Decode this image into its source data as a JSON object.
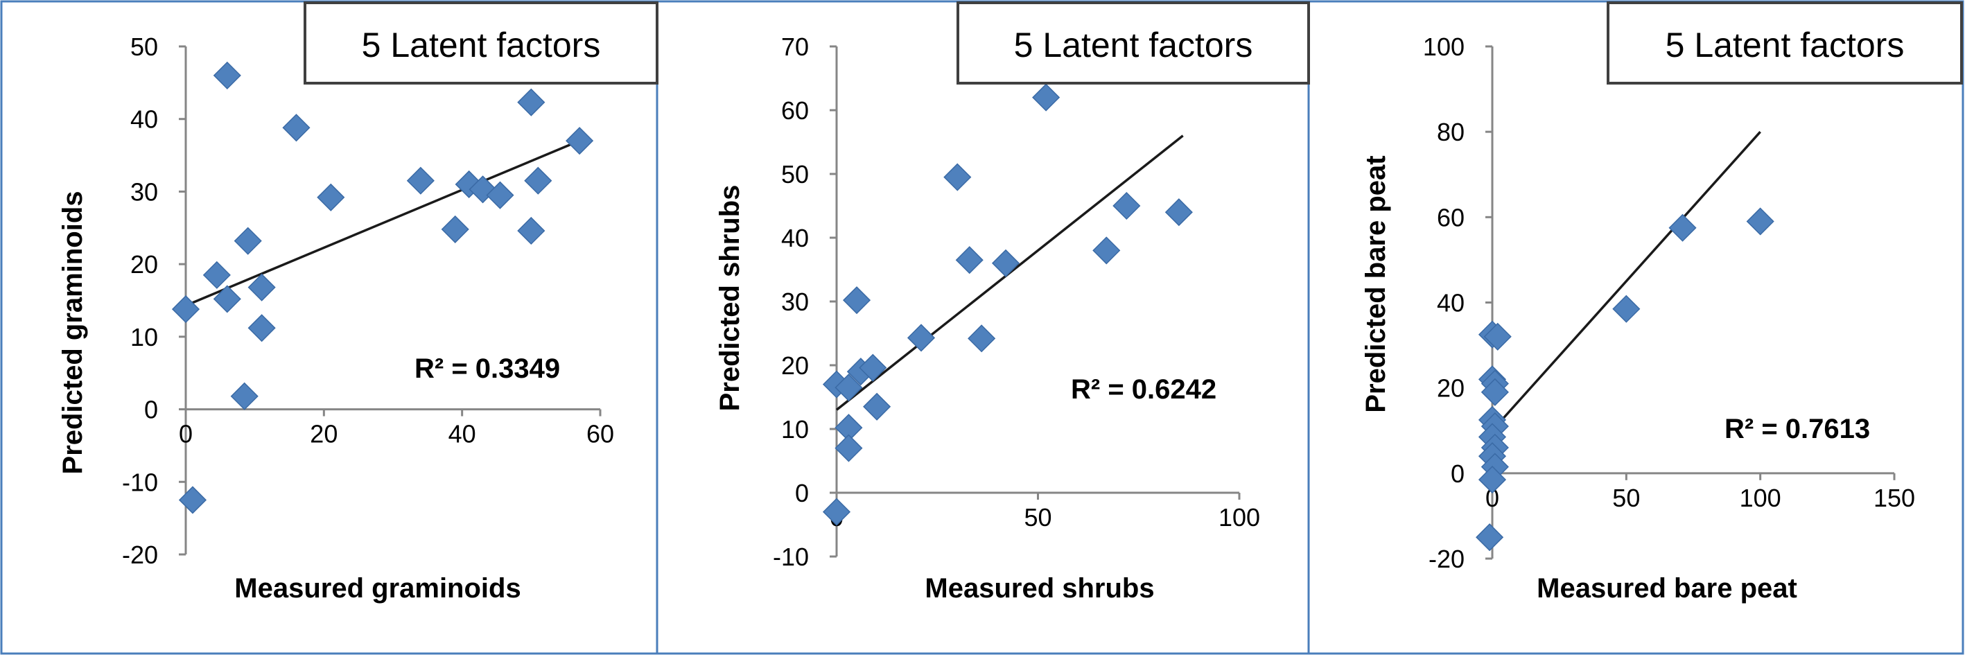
{
  "chart_data": [
    {
      "type": "scatter",
      "title": "5 Latent factors",
      "xlabel": "Measured graminoids",
      "ylabel": "Predicted graminoids",
      "xlim": [
        0,
        60
      ],
      "ylim": [
        -20,
        50
      ],
      "xticks": [
        "0",
        "20",
        "40",
        "60"
      ],
      "yticks": [
        "-20",
        "-10",
        "0",
        "10",
        "20",
        "30",
        "40",
        "50"
      ],
      "r2_label": "R² = 0.3349",
      "trendline": {
        "x": [
          0,
          57
        ],
        "y": [
          14.3,
          37
        ]
      },
      "points": [
        {
          "x": 6,
          "y": 46
        },
        {
          "x": 16,
          "y": 38.8
        },
        {
          "x": 50,
          "y": 42.3
        },
        {
          "x": 57,
          "y": 37
        },
        {
          "x": 21,
          "y": 29.2
        },
        {
          "x": 34,
          "y": 31.5
        },
        {
          "x": 41,
          "y": 31
        },
        {
          "x": 43,
          "y": 30.3
        },
        {
          "x": 45.5,
          "y": 29.5
        },
        {
          "x": 51,
          "y": 31.5
        },
        {
          "x": 39,
          "y": 24.8
        },
        {
          "x": 50,
          "y": 24.6
        },
        {
          "x": 9,
          "y": 23.2
        },
        {
          "x": 4.5,
          "y": 18.5
        },
        {
          "x": 11,
          "y": 16.8
        },
        {
          "x": 6,
          "y": 15.2
        },
        {
          "x": 0,
          "y": 13.8
        },
        {
          "x": 11,
          "y": 11.2
        },
        {
          "x": 8.5,
          "y": 1.8
        },
        {
          "x": 1,
          "y": -12.5
        }
      ]
    },
    {
      "type": "scatter",
      "title": "5 Latent factors",
      "xlabel": "Measured shrubs",
      "ylabel": "Predicted shrubs",
      "xlim": [
        0,
        100
      ],
      "ylim": [
        -10,
        70
      ],
      "xticks": [
        "0",
        "50",
        "100"
      ],
      "yticks": [
        "-10",
        "0",
        "10",
        "20",
        "30",
        "40",
        "50",
        "60",
        "70"
      ],
      "r2_label": "R² = 0.6242",
      "trendline": {
        "x": [
          0,
          86
        ],
        "y": [
          13,
          56
        ]
      },
      "points": [
        {
          "x": 52,
          "y": 62
        },
        {
          "x": 30,
          "y": 49.5
        },
        {
          "x": 72,
          "y": 45
        },
        {
          "x": 85,
          "y": 44
        },
        {
          "x": 67,
          "y": 38
        },
        {
          "x": 33,
          "y": 36.5
        },
        {
          "x": 42,
          "y": 36
        },
        {
          "x": 5,
          "y": 30.2
        },
        {
          "x": 21,
          "y": 24.3
        },
        {
          "x": 36,
          "y": 24.2
        },
        {
          "x": 6,
          "y": 19
        },
        {
          "x": 9,
          "y": 19.6
        },
        {
          "x": 0,
          "y": 17
        },
        {
          "x": 3,
          "y": 16.5
        },
        {
          "x": 10,
          "y": 13.5
        },
        {
          "x": 3,
          "y": 10.2
        },
        {
          "x": 3,
          "y": 7
        },
        {
          "x": 0,
          "y": -3
        }
      ]
    },
    {
      "type": "scatter",
      "title": "5 Latent factors",
      "xlabel": "Measured bare peat",
      "ylabel": "Predicted bare peat",
      "xlim": [
        0,
        150
      ],
      "ylim": [
        -20,
        100
      ],
      "xticks": [
        "0",
        "50",
        "100",
        "150"
      ],
      "yticks": [
        "-20",
        "0",
        "20",
        "40",
        "60",
        "80",
        "100"
      ],
      "r2_label": "R² = 0.7613",
      "trendline": {
        "x": [
          0,
          100
        ],
        "y": [
          10,
          80
        ]
      },
      "points": [
        {
          "x": 100,
          "y": 59
        },
        {
          "x": 71,
          "y": 57.5
        },
        {
          "x": 50,
          "y": 38.5
        },
        {
          "x": 0,
          "y": 32.5
        },
        {
          "x": 2,
          "y": 32
        },
        {
          "x": 0,
          "y": 22
        },
        {
          "x": 1,
          "y": 21
        },
        {
          "x": 1,
          "y": 19
        },
        {
          "x": 0,
          "y": 12.5
        },
        {
          "x": 1,
          "y": 11
        },
        {
          "x": 0,
          "y": 8.5
        },
        {
          "x": 1,
          "y": 6
        },
        {
          "x": 0,
          "y": 4
        },
        {
          "x": 1,
          "y": 1.5
        },
        {
          "x": 0,
          "y": -1.5
        },
        {
          "x": -1,
          "y": -15
        }
      ]
    }
  ]
}
